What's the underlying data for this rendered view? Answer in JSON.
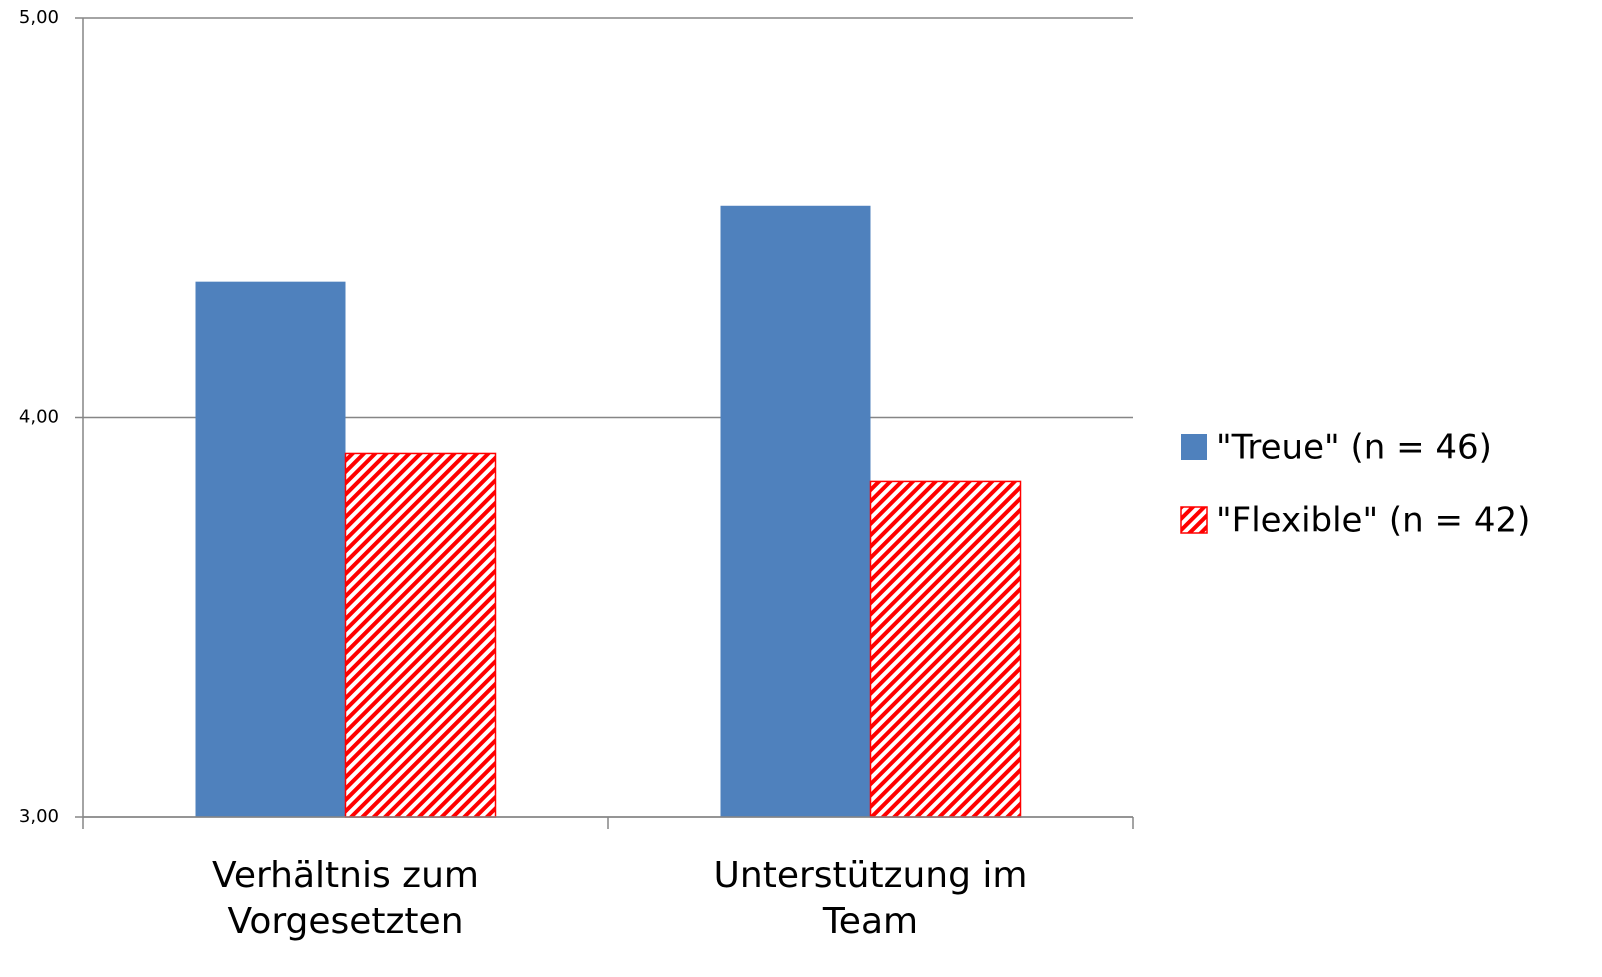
{
  "chart_data": {
    "type": "bar",
    "categories": [
      "Verhältnis zum Vorgesetzten",
      "Unterstützung im Team"
    ],
    "series": [
      {
        "name": "\"Treue\" (n = 46)",
        "color": "#4f81bd",
        "values": [
          4.34,
          4.53
        ]
      },
      {
        "name": "\"Flexible\" (n = 42)",
        "color": "#ff0000",
        "hatch": true,
        "values": [
          3.91,
          3.84
        ]
      }
    ],
    "ylim": [
      3,
      5
    ],
    "yticks": [
      {
        "value": 3,
        "label": "3,00"
      },
      {
        "value": 4,
        "label": "4,00"
      },
      {
        "value": 5,
        "label": "5,00"
      }
    ],
    "grid": true,
    "legend": "right"
  }
}
